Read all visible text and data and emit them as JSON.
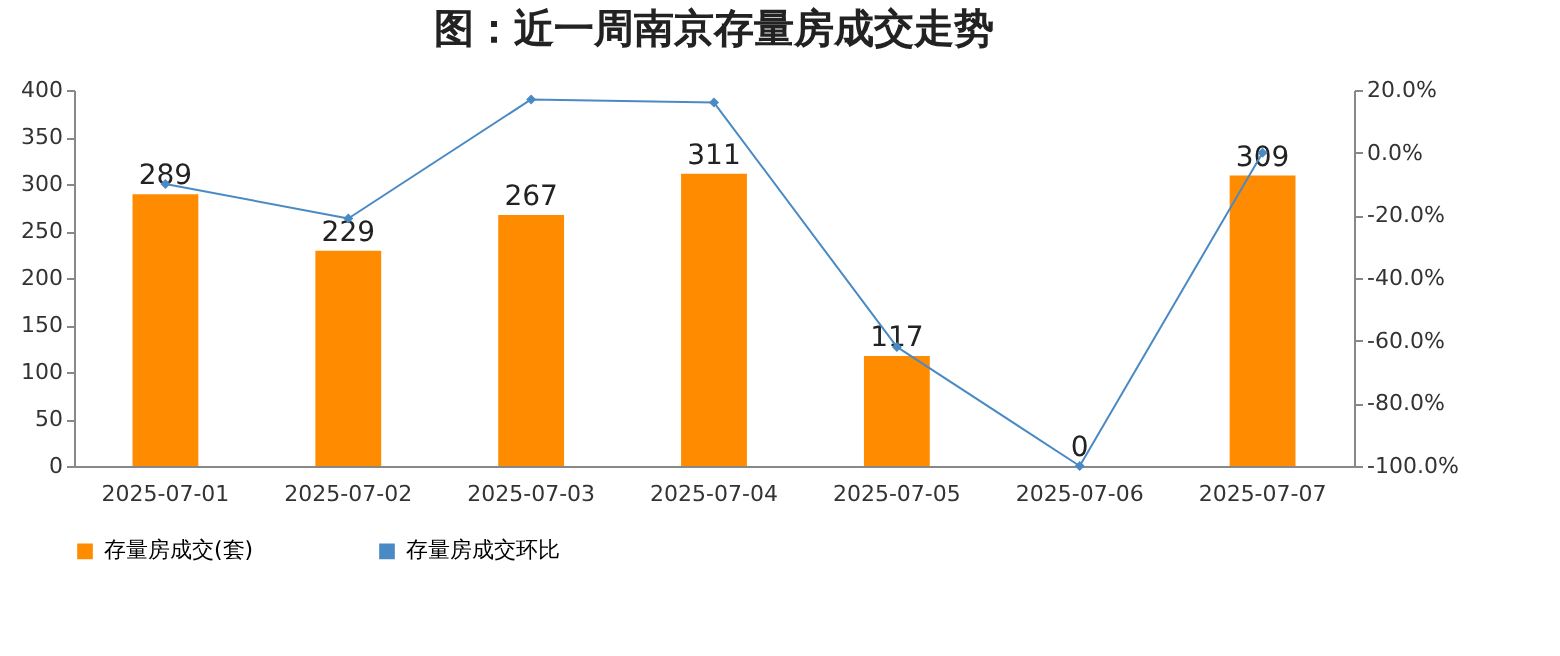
{
  "chart_data": {
    "type": "bar",
    "title": "图：近一周南京存量房成交走势",
    "categories": [
      "2025-07-01",
      "2025-07-02",
      "2025-07-03",
      "2025-07-04",
      "2025-07-05",
      "2025-07-06",
      "2025-07-07"
    ],
    "series": [
      {
        "name": "存量房成交(套)",
        "color": "#ff8c00",
        "values": [
          289,
          229,
          267,
          311,
          117,
          0,
          309
        ],
        "value_labels": [
          "289",
          "229",
          "267",
          "311",
          "117",
          "0",
          "309"
        ]
      },
      {
        "name": "存量房成交环比",
        "type": "line",
        "axis": "y2",
        "color": "#4a8ac4",
        "values": [
          -10,
          -21,
          17,
          16,
          -62,
          -100,
          0
        ]
      }
    ],
    "ylim": [
      0,
      400
    ],
    "yticks": [
      0,
      50,
      100,
      150,
      200,
      250,
      300,
      350,
      400
    ],
    "y2lim": [
      -100,
      20
    ],
    "y2ticks": [
      {
        "value": -100,
        "label": "-100.0%"
      },
      {
        "value": -80,
        "label": "-80.0%"
      },
      {
        "value": -60,
        "label": "-60.0%"
      },
      {
        "value": -40,
        "label": "-40.0%"
      },
      {
        "value": -20,
        "label": "-20.0%"
      },
      {
        "value": 0,
        "label": "0.0%"
      },
      {
        "value": 20,
        "label": "20.0%"
      }
    ],
    "marker": "diamond",
    "legend": "bottom",
    "grid": false
  }
}
